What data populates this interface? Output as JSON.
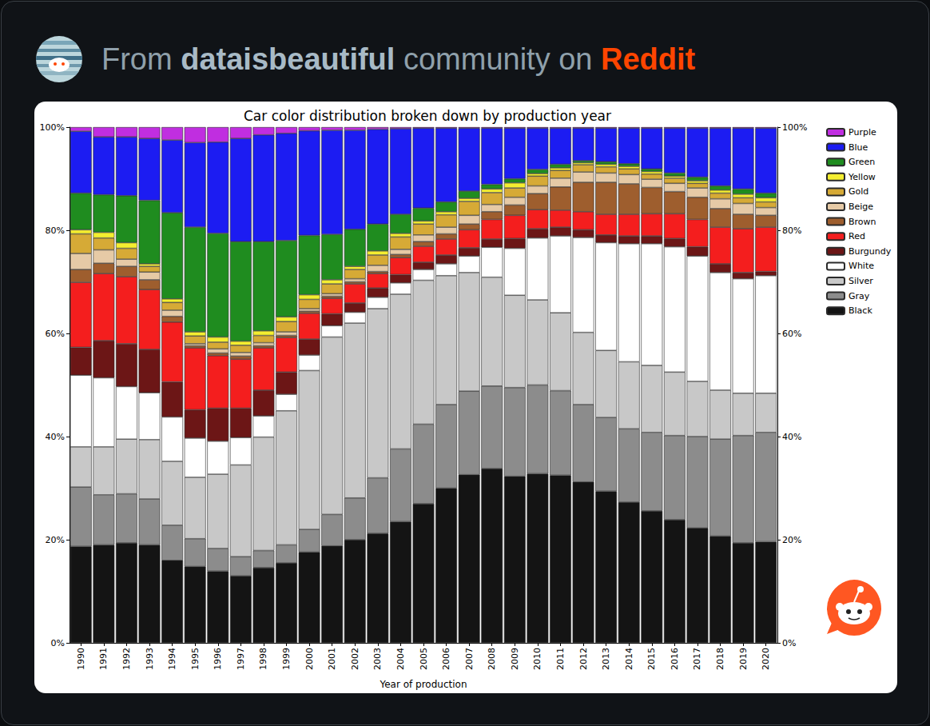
{
  "header": {
    "prefix": "From",
    "community": "dataisbeautiful",
    "middle": "community on",
    "site": "Reddit"
  },
  "chart_data": {
    "type": "bar",
    "title": "Car color distribution broken down by production year",
    "x_label": "Year of production",
    "stacked": true,
    "grid": false,
    "legend": "upper right",
    "categories": [
      "1990",
      "1991",
      "1992",
      "1993",
      "1994",
      "1995",
      "1996",
      "1997",
      "1998",
      "1999",
      "2000",
      "2001",
      "2002",
      "2003",
      "2004",
      "2005",
      "2006",
      "2007",
      "2008",
      "2009",
      "2010",
      "2011",
      "2012",
      "2013",
      "2014",
      "2015",
      "2016",
      "2017",
      "2018",
      "2019",
      "2020"
    ],
    "ylim": [
      0,
      100
    ],
    "yticks": [
      {
        "value": 0,
        "label": "0%"
      },
      {
        "value": 20,
        "label": "20%"
      },
      {
        "value": 40,
        "label": "40%"
      },
      {
        "value": 60,
        "label": "60%"
      },
      {
        "value": 80,
        "label": "80%"
      },
      {
        "value": 100,
        "label": "100%"
      }
    ],
    "y2lim": [
      0,
      100
    ],
    "y2ticks": [
      {
        "value": 0,
        "label": "0%"
      },
      {
        "value": 20,
        "label": "20%"
      },
      {
        "value": 40,
        "label": "40%"
      },
      {
        "value": 60,
        "label": "60%"
      },
      {
        "value": 80,
        "label": "80%"
      },
      {
        "value": 100,
        "label": "100%"
      }
    ],
    "series": [
      {
        "name": "Purple",
        "color": "#c02ee0",
        "values": [
          0.8,
          1.9,
          1.9,
          2.2,
          2.5,
          3.0,
          2.9,
          2.2,
          1.5,
          1.2,
          0.7,
          0.6,
          0.6,
          0.4,
          0.3,
          0.2,
          0.2,
          0.2,
          0.2,
          0.2,
          0.2,
          0.2,
          0.2,
          0.2,
          0.2,
          0.2,
          0.2,
          0.2,
          0.2,
          0.2,
          0.2
        ]
      },
      {
        "name": "Blue",
        "color": "#1c1cf2",
        "values": [
          12.0,
          11.2,
          11.4,
          12.0,
          14.1,
          16.4,
          17.7,
          20.0,
          20.7,
          20.8,
          20.3,
          20.2,
          19.2,
          18.4,
          16.6,
          15.5,
          14.3,
          12.2,
          10.9,
          9.8,
          8.0,
          7.0,
          6.3,
          6.5,
          6.9,
          7.9,
          8.7,
          9.5,
          11.2,
          11.8,
          12.6
        ]
      },
      {
        "name": "Green",
        "color": "#1f8c1f",
        "values": [
          7.1,
          7.3,
          9.1,
          12.3,
          16.7,
          20.3,
          20.1,
          19.3,
          17.3,
          14.8,
          11.5,
          8.8,
          7.2,
          5.2,
          3.7,
          2.5,
          1.9,
          1.4,
          0.9,
          0.8,
          0.8,
          0.7,
          0.4,
          0.5,
          0.5,
          0.5,
          0.6,
          0.7,
          0.8,
          1.0,
          0.9
        ]
      },
      {
        "name": "Yellow",
        "color": "#f4ee30",
        "values": [
          0.8,
          1.1,
          1.1,
          0.5,
          0.7,
          0.8,
          1.0,
          0.8,
          0.9,
          0.9,
          0.9,
          0.8,
          0.6,
          0.8,
          0.7,
          0.6,
          0.6,
          0.6,
          0.7,
          1.0,
          0.5,
          0.5,
          0.4,
          0.5,
          0.5,
          0.5,
          0.4,
          0.5,
          0.6,
          0.7,
          0.8
        ]
      },
      {
        "name": "Gold",
        "color": "#d6aa36",
        "values": [
          3.8,
          2.3,
          2.1,
          1.1,
          1.5,
          1.5,
          1.3,
          1.4,
          1.4,
          2.0,
          1.8,
          1.9,
          1.8,
          2.0,
          2.4,
          2.1,
          2.4,
          2.7,
          2.3,
          1.8,
          1.9,
          1.5,
          1.4,
          1.2,
          1.1,
          1.0,
          1.0,
          0.9,
          1.1,
          1.1,
          1.1
        ]
      },
      {
        "name": "Beige",
        "color": "#e6caa6",
        "values": [
          3.1,
          2.6,
          1.4,
          1.5,
          1.2,
          0.4,
          0.8,
          0.7,
          0.6,
          0.7,
          0.5,
          0.5,
          0.6,
          1.2,
          1.0,
          1.3,
          1.3,
          1.7,
          1.4,
          1.5,
          1.5,
          1.7,
          2.0,
          1.8,
          1.8,
          1.6,
          1.6,
          1.8,
          1.9,
          2.1,
          1.5
        ]
      },
      {
        "name": "Brown",
        "color": "#9e5e2e",
        "values": [
          2.5,
          2.0,
          2.0,
          1.9,
          1.1,
          0.4,
          0.5,
          0.6,
          0.4,
          0.4,
          0.4,
          0.4,
          0.4,
          0.4,
          0.6,
          0.9,
          1.0,
          1.1,
          1.5,
          2.0,
          3.1,
          4.5,
          5.7,
          6.2,
          5.9,
          5.1,
          4.3,
          4.3,
          3.6,
          2.8,
          2.3
        ]
      },
      {
        "name": "Red",
        "color": "#f41e1e",
        "values": [
          12.6,
          13.0,
          13.0,
          11.6,
          11.6,
          12.0,
          10.2,
          9.5,
          8.2,
          6.7,
          5.0,
          3.0,
          3.7,
          2.8,
          3.3,
          3.1,
          3.1,
          3.5,
          3.8,
          4.5,
          3.7,
          3.3,
          3.5,
          4.0,
          4.2,
          4.3,
          4.8,
          5.3,
          7.1,
          8.5,
          8.6
        ]
      },
      {
        "name": "Burgundy",
        "color": "#6c1616",
        "values": [
          5.4,
          7.2,
          8.3,
          8.4,
          6.8,
          5.5,
          6.4,
          5.7,
          5.0,
          4.3,
          3.1,
          2.3,
          1.8,
          1.8,
          1.6,
          1.4,
          1.7,
          1.6,
          1.6,
          1.9,
          1.8,
          1.7,
          1.5,
          1.5,
          1.5,
          1.5,
          1.6,
          1.8,
          1.7,
          1.2,
          0.8
        ]
      },
      {
        "name": "White",
        "color": "#ffffff",
        "values": [
          13.9,
          13.4,
          10.2,
          9.1,
          8.6,
          7.6,
          6.4,
          5.3,
          4.1,
          3.2,
          3.0,
          2.2,
          2.1,
          2.2,
          2.2,
          2.1,
          2.3,
          3.2,
          5.8,
          9.1,
          12.0,
          14.9,
          18.4,
          20.9,
          22.9,
          23.6,
          24.3,
          24.3,
          22.8,
          22.2,
          22.8
        ]
      },
      {
        "name": "Silver",
        "color": "#c8c8c8",
        "values": [
          7.8,
          9.3,
          10.6,
          11.5,
          12.4,
          11.9,
          14.4,
          17.8,
          22.0,
          26.0,
          30.8,
          34.4,
          33.9,
          32.8,
          30.0,
          27.9,
          25.0,
          23.0,
          21.1,
          17.9,
          16.5,
          15.1,
          14.0,
          13.0,
          13.0,
          13.0,
          12.3,
          10.7,
          9.5,
          8.2,
          7.6
        ]
      },
      {
        "name": "Gray",
        "color": "#8c8c8c",
        "values": [
          11.5,
          9.7,
          9.5,
          8.9,
          6.8,
          5.4,
          4.4,
          3.7,
          3.3,
          3.5,
          4.4,
          6.1,
          8.1,
          10.8,
          14.1,
          15.4,
          16.2,
          16.2,
          16.0,
          17.2,
          17.2,
          16.4,
          15.0,
          14.3,
          14.2,
          15.2,
          16.3,
          17.7,
          18.8,
          20.8,
          21.2
        ]
      },
      {
        "name": "Black",
        "color": "#141414",
        "values": [
          18.7,
          19.0,
          19.4,
          19.0,
          16.0,
          14.8,
          13.9,
          13.0,
          14.6,
          15.5,
          17.6,
          18.8,
          20.0,
          21.2,
          23.5,
          27.0,
          30.0,
          32.6,
          33.8,
          32.3,
          32.8,
          32.5,
          31.2,
          29.4,
          27.3,
          25.6,
          23.9,
          22.3,
          20.7,
          19.4,
          19.6
        ]
      }
    ]
  }
}
